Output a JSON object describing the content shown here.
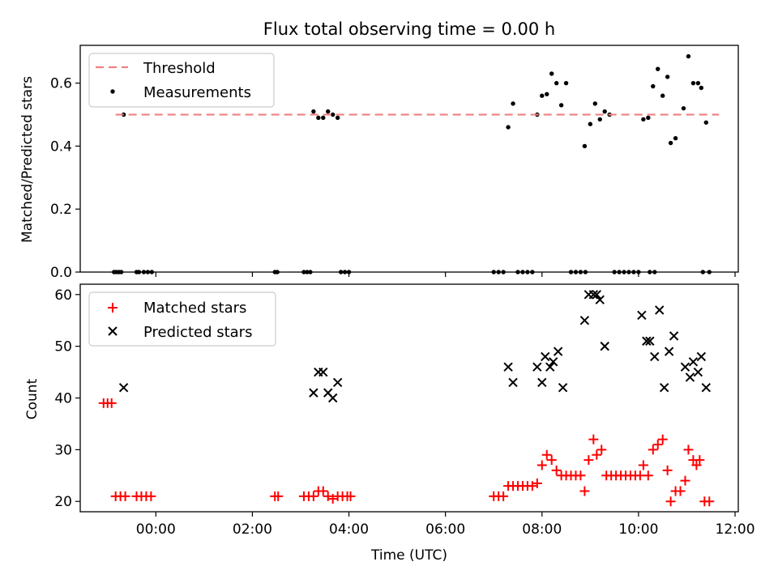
{
  "chart_data": [
    {
      "type": "scatter",
      "title": "Flux total observing time = 0.00 h",
      "xlabel": "",
      "ylabel": "Matched/Predicted stars",
      "xlim": [
        "2023-01-01T22:26",
        "2023-01-02T12:04"
      ],
      "ylim": [
        0,
        0.72
      ],
      "yticks": [
        0.0,
        0.2,
        0.4,
        0.6
      ],
      "ytick_labels": [
        "0.0",
        "0.2",
        "0.4",
        "0.6"
      ],
      "xtick_labels": [],
      "grid": false,
      "legend_position": "upper-left",
      "threshold": {
        "name": "Threshold",
        "value": 0.5,
        "x": [
          "2023-01-01T23:10",
          "2023-01-02T11:40"
        ],
        "color": "#f08080"
      },
      "series": [
        {
          "name": "Measurements",
          "color": "#000000",
          "points": [
            [
              "2023-01-01T23:08",
              0
            ],
            [
              "2023-01-01T23:11",
              0
            ],
            [
              "2023-01-01T23:14",
              0
            ],
            [
              "2023-01-01T23:17",
              0
            ],
            [
              "2023-01-01T23:20",
              0.5
            ],
            [
              "2023-01-01T23:36",
              0
            ],
            [
              "2023-01-01T23:39",
              0
            ],
            [
              "2023-01-01T23:45",
              0
            ],
            [
              "2023-01-01T23:50",
              0
            ],
            [
              "2023-01-01T23:55",
              0
            ],
            [
              "2023-01-02T02:28",
              0
            ],
            [
              "2023-01-02T02:31",
              0
            ],
            [
              "2023-01-02T03:04",
              0
            ],
            [
              "2023-01-02T03:08",
              0
            ],
            [
              "2023-01-02T03:12",
              0
            ],
            [
              "2023-01-02T03:16",
              0.51
            ],
            [
              "2023-01-02T03:22",
              0.49
            ],
            [
              "2023-01-02T03:28",
              0.49
            ],
            [
              "2023-01-02T03:34",
              0.51
            ],
            [
              "2023-01-02T03:40",
              0.5
            ],
            [
              "2023-01-02T03:46",
              0.49
            ],
            [
              "2023-01-02T03:50",
              0
            ],
            [
              "2023-01-02T03:55",
              0
            ],
            [
              "2023-01-02T04:00",
              0
            ],
            [
              "2023-01-02T07:00",
              0
            ],
            [
              "2023-01-02T07:06",
              0
            ],
            [
              "2023-01-02T07:12",
              0
            ],
            [
              "2023-01-02T07:18",
              0.46
            ],
            [
              "2023-01-02T07:24",
              0.535
            ],
            [
              "2023-01-02T07:30",
              0
            ],
            [
              "2023-01-02T07:36",
              0
            ],
            [
              "2023-01-02T07:42",
              0
            ],
            [
              "2023-01-02T07:48",
              0
            ],
            [
              "2023-01-02T07:54",
              0.5
            ],
            [
              "2023-01-02T08:00",
              0.56
            ],
            [
              "2023-01-02T08:06",
              0.565
            ],
            [
              "2023-01-02T08:12",
              0.63
            ],
            [
              "2023-01-02T08:18",
              0.6
            ],
            [
              "2023-01-02T08:24",
              0.53
            ],
            [
              "2023-01-02T08:30",
              0.6
            ],
            [
              "2023-01-02T08:36",
              0
            ],
            [
              "2023-01-02T08:42",
              0
            ],
            [
              "2023-01-02T08:48",
              0
            ],
            [
              "2023-01-02T08:54",
              0
            ],
            [
              "2023-01-02T08:53",
              0.4
            ],
            [
              "2023-01-02T09:00",
              0.47
            ],
            [
              "2023-01-02T09:06",
              0.535
            ],
            [
              "2023-01-02T09:12",
              0.485
            ],
            [
              "2023-01-02T09:18",
              0.51
            ],
            [
              "2023-01-02T09:24",
              0.5
            ],
            [
              "2023-01-02T09:30",
              0
            ],
            [
              "2023-01-02T09:36",
              0
            ],
            [
              "2023-01-02T09:42",
              0
            ],
            [
              "2023-01-02T09:48",
              0
            ],
            [
              "2023-01-02T09:54",
              0
            ],
            [
              "2023-01-02T10:00",
              0
            ],
            [
              "2023-01-02T10:06",
              0.485
            ],
            [
              "2023-01-02T10:12",
              0.49
            ],
            [
              "2023-01-02T10:18",
              0.59
            ],
            [
              "2023-01-02T10:24",
              0.645
            ],
            [
              "2023-01-02T10:30",
              0.56
            ],
            [
              "2023-01-02T10:36",
              0.62
            ],
            [
              "2023-01-02T10:40",
              0.41
            ],
            [
              "2023-01-02T10:46",
              0.425
            ],
            [
              "2023-01-02T10:56",
              0.52
            ],
            [
              "2023-01-02T11:02",
              0.685
            ],
            [
              "2023-01-02T11:08",
              0.6
            ],
            [
              "2023-01-02T11:14",
              0.6
            ],
            [
              "2023-01-02T11:18",
              0.585
            ],
            [
              "2023-01-02T11:24",
              0.475
            ],
            [
              "2023-01-02T11:28",
              0
            ],
            [
              "2023-01-02T10:14",
              0
            ],
            [
              "2023-01-02T10:20",
              0
            ],
            [
              "2023-01-02T11:20",
              0
            ]
          ]
        }
      ]
    },
    {
      "type": "scatter",
      "title": "",
      "xlabel": "Time (UTC)",
      "ylabel": "Count",
      "xlim": [
        "2023-01-01T22:26",
        "2023-01-02T12:04"
      ],
      "ylim": [
        18,
        62
      ],
      "yticks": [
        20,
        30,
        40,
        50,
        60
      ],
      "ytick_labels": [
        "20",
        "30",
        "40",
        "50",
        "60"
      ],
      "xticks": [
        "2023-01-02T00:00",
        "2023-01-02T02:00",
        "2023-01-02T04:00",
        "2023-01-02T06:00",
        "2023-01-02T08:00",
        "2023-01-02T10:00",
        "2023-01-02T12:00"
      ],
      "xtick_labels": [
        "00:00",
        "02:00",
        "04:00",
        "06:00",
        "08:00",
        "10:00",
        "12:00"
      ],
      "grid": false,
      "legend_position": "upper-left",
      "series": [
        {
          "name": "Matched stars",
          "marker": "plus",
          "color": "#ff0000",
          "points": [
            [
              "2023-01-01T22:55",
              39
            ],
            [
              "2023-01-01T23:00",
              39
            ],
            [
              "2023-01-01T23:05",
              39
            ],
            [
              "2023-01-01T23:10",
              21
            ],
            [
              "2023-01-01T23:16",
              21
            ],
            [
              "2023-01-01T23:22",
              21
            ],
            [
              "2023-01-01T23:36",
              21
            ],
            [
              "2023-01-01T23:42",
              21
            ],
            [
              "2023-01-01T23:48",
              21
            ],
            [
              "2023-01-01T23:54",
              21
            ],
            [
              "2023-01-02T02:28",
              21
            ],
            [
              "2023-01-02T02:32",
              21
            ],
            [
              "2023-01-02T03:04",
              21
            ],
            [
              "2023-01-02T03:10",
              21
            ],
            [
              "2023-01-02T03:16",
              21
            ],
            [
              "2023-01-02T03:22",
              22
            ],
            [
              "2023-01-02T03:28",
              22
            ],
            [
              "2023-01-02T03:34",
              21
            ],
            [
              "2023-01-02T03:40",
              20.5
            ],
            [
              "2023-01-02T03:46",
              21
            ],
            [
              "2023-01-02T03:52",
              21
            ],
            [
              "2023-01-02T03:58",
              21
            ],
            [
              "2023-01-02T04:02",
              21
            ],
            [
              "2023-01-02T07:00",
              21
            ],
            [
              "2023-01-02T07:06",
              21
            ],
            [
              "2023-01-02T07:12",
              21
            ],
            [
              "2023-01-02T07:18",
              23
            ],
            [
              "2023-01-02T07:24",
              23
            ],
            [
              "2023-01-02T07:30",
              23
            ],
            [
              "2023-01-02T07:36",
              23
            ],
            [
              "2023-01-02T07:42",
              23
            ],
            [
              "2023-01-02T07:48",
              23
            ],
            [
              "2023-01-02T07:54",
              23.5
            ],
            [
              "2023-01-02T08:00",
              27
            ],
            [
              "2023-01-02T08:06",
              29
            ],
            [
              "2023-01-02T08:12",
              28
            ],
            [
              "2023-01-02T08:18",
              26
            ],
            [
              "2023-01-02T08:24",
              25
            ],
            [
              "2023-01-02T08:30",
              25
            ],
            [
              "2023-01-02T08:36",
              25
            ],
            [
              "2023-01-02T08:42",
              25
            ],
            [
              "2023-01-02T08:48",
              25
            ],
            [
              "2023-01-02T08:53",
              22
            ],
            [
              "2023-01-02T08:58",
              28
            ],
            [
              "2023-01-02T09:04",
              32
            ],
            [
              "2023-01-02T09:08",
              29
            ],
            [
              "2023-01-02T09:14",
              30
            ],
            [
              "2023-01-02T09:20",
              25
            ],
            [
              "2023-01-02T09:26",
              25
            ],
            [
              "2023-01-02T09:32",
              25
            ],
            [
              "2023-01-02T09:38",
              25
            ],
            [
              "2023-01-02T09:44",
              25
            ],
            [
              "2023-01-02T09:50",
              25
            ],
            [
              "2023-01-02T09:56",
              25
            ],
            [
              "2023-01-02T10:02",
              25
            ],
            [
              "2023-01-02T10:06",
              27
            ],
            [
              "2023-01-02T10:12",
              25
            ],
            [
              "2023-01-02T10:18",
              30
            ],
            [
              "2023-01-02T10:24",
              31
            ],
            [
              "2023-01-02T10:30",
              32
            ],
            [
              "2023-01-02T10:36",
              26
            ],
            [
              "2023-01-02T10:40",
              20
            ],
            [
              "2023-01-02T10:46",
              22
            ],
            [
              "2023-01-02T10:52",
              22
            ],
            [
              "2023-01-02T10:58",
              24
            ],
            [
              "2023-01-02T11:02",
              30
            ],
            [
              "2023-01-02T11:08",
              28
            ],
            [
              "2023-01-02T11:12",
              27
            ],
            [
              "2023-01-02T11:16",
              28
            ],
            [
              "2023-01-02T11:22",
              20
            ],
            [
              "2023-01-02T11:28",
              20
            ]
          ]
        },
        {
          "name": "Predicted stars",
          "marker": "x",
          "color": "#000000",
          "points": [
            [
              "2023-01-01T23:20",
              42
            ],
            [
              "2023-01-02T03:16",
              41
            ],
            [
              "2023-01-02T03:22",
              45
            ],
            [
              "2023-01-02T03:28",
              45
            ],
            [
              "2023-01-02T03:34",
              41
            ],
            [
              "2023-01-02T03:40",
              40
            ],
            [
              "2023-01-02T03:46",
              43
            ],
            [
              "2023-01-02T07:18",
              46
            ],
            [
              "2023-01-02T07:24",
              43
            ],
            [
              "2023-01-02T07:54",
              46
            ],
            [
              "2023-01-02T08:00",
              43
            ],
            [
              "2023-01-02T08:04",
              48
            ],
            [
              "2023-01-02T08:10",
              46
            ],
            [
              "2023-01-02T08:14",
              47
            ],
            [
              "2023-01-02T08:20",
              49
            ],
            [
              "2023-01-02T08:26",
              42
            ],
            [
              "2023-01-02T08:53",
              55
            ],
            [
              "2023-01-02T08:58",
              60
            ],
            [
              "2023-01-02T09:04",
              60
            ],
            [
              "2023-01-02T09:08",
              60
            ],
            [
              "2023-01-02T09:12",
              59
            ],
            [
              "2023-01-02T09:18",
              50
            ],
            [
              "2023-01-02T10:04",
              56
            ],
            [
              "2023-01-02T10:10",
              51
            ],
            [
              "2023-01-02T10:14",
              51
            ],
            [
              "2023-01-02T10:20",
              48
            ],
            [
              "2023-01-02T10:26",
              57
            ],
            [
              "2023-01-02T10:32",
              42
            ],
            [
              "2023-01-02T10:38",
              49
            ],
            [
              "2023-01-02T10:44",
              52
            ],
            [
              "2023-01-02T10:58",
              46
            ],
            [
              "2023-01-02T11:04",
              44
            ],
            [
              "2023-01-02T11:08",
              47
            ],
            [
              "2023-01-02T11:14",
              45
            ],
            [
              "2023-01-02T11:18",
              48
            ],
            [
              "2023-01-02T11:24",
              42
            ]
          ]
        }
      ]
    }
  ]
}
